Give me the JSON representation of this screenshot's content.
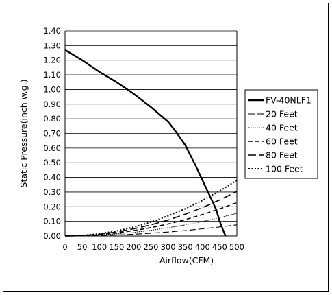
{
  "chart_data": {
    "type": "line",
    "title": "",
    "xlabel": "Airflow(CFM)",
    "ylabel": "Static Pressure(inch w.g.)",
    "xlim": [
      0,
      500
    ],
    "ylim": [
      0,
      1.4
    ],
    "x_ticks": [
      0,
      50,
      100,
      150,
      200,
      250,
      300,
      350,
      400,
      450,
      500
    ],
    "x_tick_labels": [
      "0",
      "50",
      "100",
      "150",
      "200",
      "250",
      "300",
      "350",
      "400",
      "450",
      "500"
    ],
    "y_ticks": [
      0,
      0.1,
      0.2,
      0.3,
      0.4,
      0.5,
      0.6,
      0.7,
      0.8,
      0.9,
      1.0,
      1.1,
      1.2,
      1.3,
      1.4
    ],
    "y_tick_labels": [
      "0.00",
      "0.10",
      "0.20",
      "0.30",
      "0.40",
      "0.50",
      "0.60",
      "0.70",
      "0.80",
      "0.90",
      "1.00",
      "1.10",
      "1.20",
      "1.30",
      "1.40"
    ],
    "grid": "horizontal",
    "legend_position": "right",
    "series": [
      {
        "name": "FV-40NLF1",
        "style": "solid-thick",
        "x": [
          0,
          50,
          100,
          150,
          200,
          250,
          300,
          320,
          350,
          380,
          410,
          430,
          440,
          450,
          460,
          467
        ],
        "y": [
          1.27,
          1.2,
          1.12,
          1.05,
          0.97,
          0.88,
          0.78,
          0.72,
          0.62,
          0.48,
          0.33,
          0.23,
          0.18,
          0.1,
          0.04,
          0.0
        ]
      },
      {
        "name": "20 Feet",
        "style": "dash-long-thin",
        "x": [
          0,
          50,
          100,
          150,
          200,
          250,
          300,
          350,
          400,
          450,
          500
        ],
        "y": [
          0.0,
          0.0008,
          0.003,
          0.007,
          0.012,
          0.019,
          0.027,
          0.037,
          0.049,
          0.062,
          0.076
        ]
      },
      {
        "name": "40 Feet",
        "style": "dot-fine",
        "x": [
          0,
          50,
          100,
          150,
          200,
          250,
          300,
          350,
          400,
          450,
          500
        ],
        "y": [
          0.0,
          0.0016,
          0.0062,
          0.014,
          0.025,
          0.039,
          0.056,
          0.076,
          0.099,
          0.125,
          0.155
        ]
      },
      {
        "name": "60 Feet",
        "style": "dash-medium",
        "x": [
          0,
          50,
          100,
          150,
          200,
          250,
          300,
          350,
          400,
          450,
          500
        ],
        "y": [
          0.0,
          0.0023,
          0.009,
          0.021,
          0.037,
          0.057,
          0.082,
          0.112,
          0.146,
          0.185,
          0.228
        ]
      },
      {
        "name": "80 Feet",
        "style": "dash-long-thick",
        "x": [
          0,
          50,
          100,
          150,
          200,
          250,
          300,
          350,
          400,
          450,
          500
        ],
        "y": [
          0.0,
          0.003,
          0.012,
          0.027,
          0.049,
          0.076,
          0.109,
          0.149,
          0.194,
          0.246,
          0.304
        ]
      },
      {
        "name": "100 Feet",
        "style": "dot-heavy",
        "x": [
          0,
          50,
          100,
          150,
          200,
          250,
          300,
          350,
          400,
          450,
          500
        ],
        "y": [
          0.0,
          0.0038,
          0.015,
          0.034,
          0.061,
          0.095,
          0.137,
          0.186,
          0.243,
          0.307,
          0.38
        ]
      }
    ]
  },
  "styles": {
    "solid-thick": {
      "width": 2.4,
      "dash": ""
    },
    "dash-long-thin": {
      "width": 1.1,
      "dash": "9,4"
    },
    "dot-fine": {
      "width": 1.0,
      "dash": "1.5,1.5"
    },
    "dash-medium": {
      "width": 1.6,
      "dash": "6,4"
    },
    "dash-long-thick": {
      "width": 1.6,
      "dash": "11,5"
    },
    "dot-heavy": {
      "width": 2.0,
      "dash": "2,2.5"
    }
  },
  "colors": {
    "line": "#000000",
    "grid": "#000000",
    "background": "#ffffff"
  }
}
